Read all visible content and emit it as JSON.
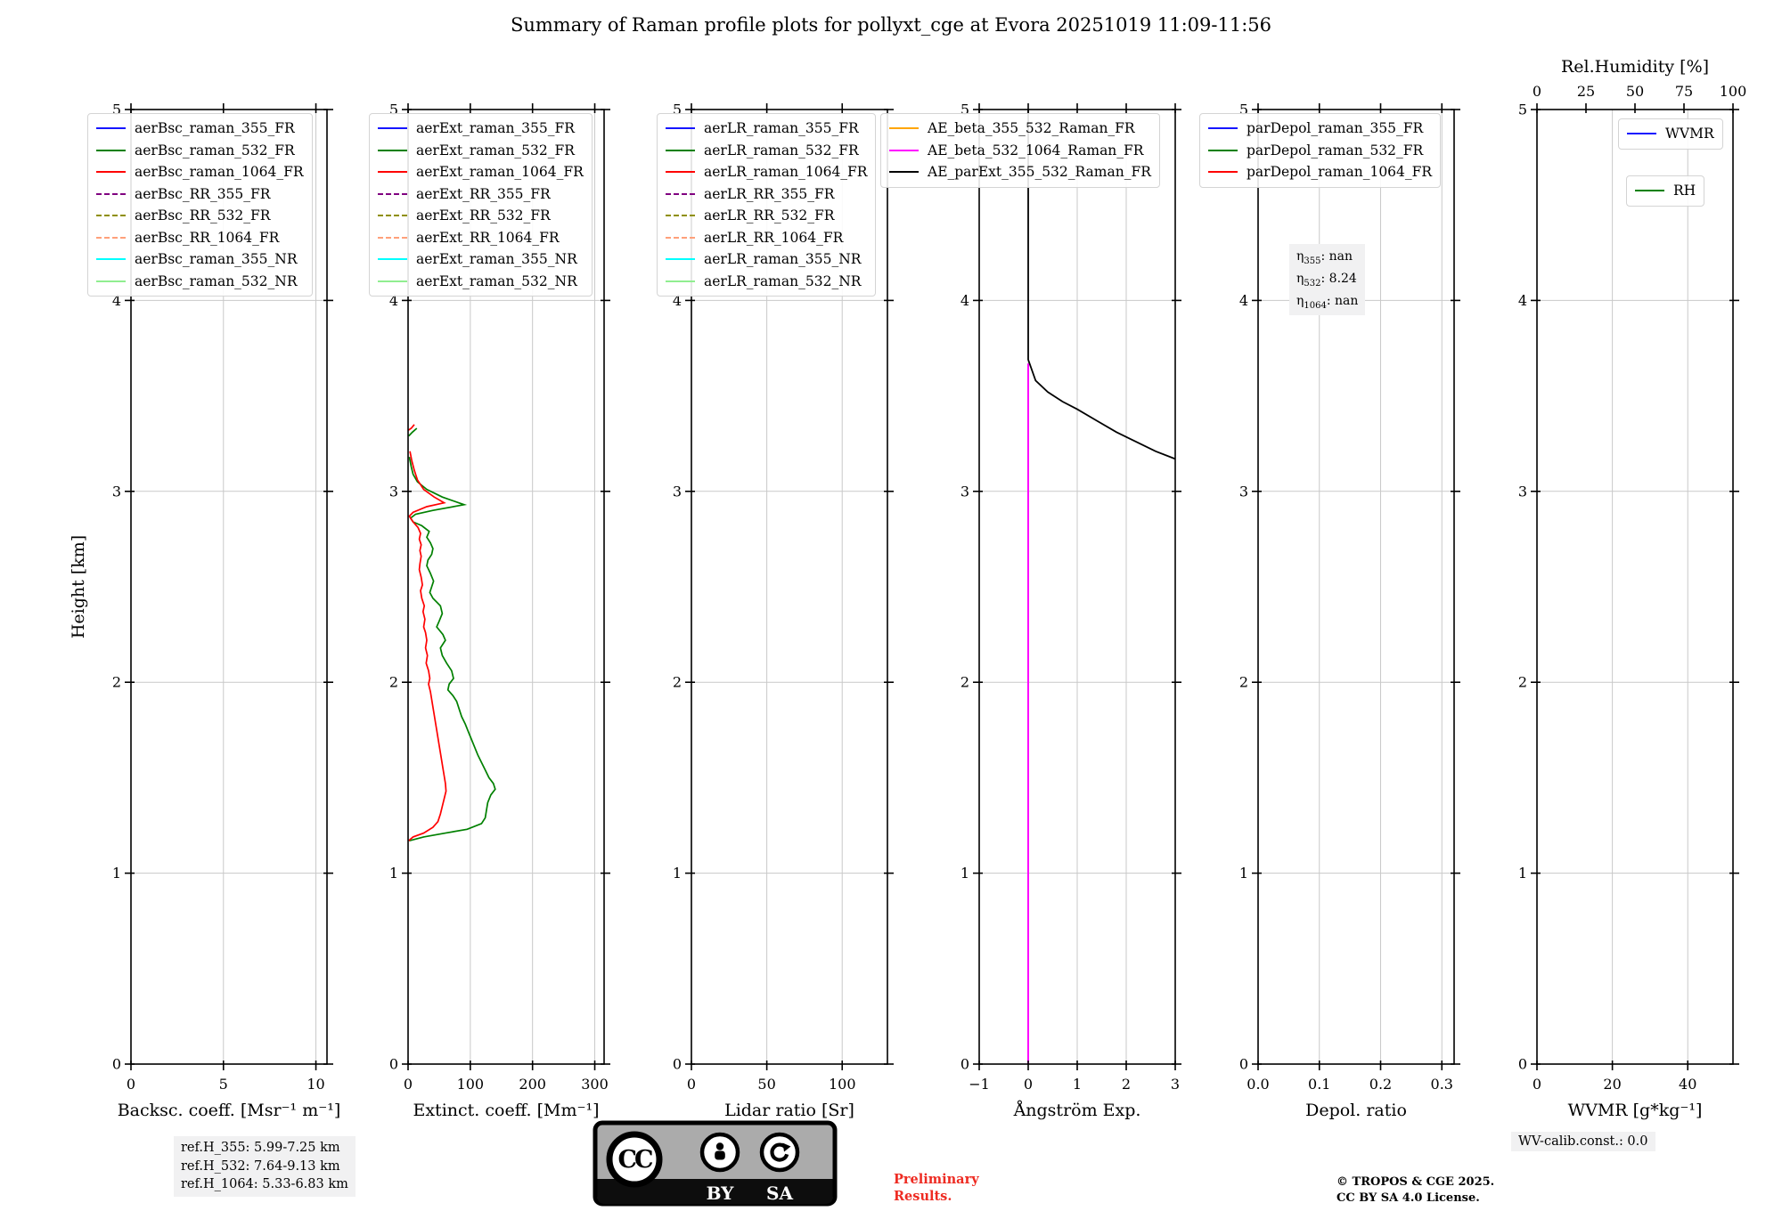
{
  "title": "Summary of Raman profile plots for pollyxt_cge at Evora 20251019 11:09-11:56",
  "ylabel": "Height [km]",
  "eta": {
    "symbol": "η",
    "sep": ": ",
    "lines": [
      {
        "sub": "355",
        "value": "nan"
      },
      {
        "sub": "532",
        "value": "8.24"
      },
      {
        "sub": "1064",
        "value": "nan"
      }
    ]
  },
  "footer": {
    "ref_heights": [
      "ref.H_355: 5.99-7.25 km",
      "ref.H_532: 7.64-9.13 km",
      "ref.H_1064: 5.33-6.83 km"
    ],
    "wv_calib": "WV-calib.const.: 0.0",
    "copyright": [
      "© TROPOS & CGE 2025.",
      "CC BY SA 4.0 License."
    ],
    "preliminary": [
      "Preliminary",
      "Results."
    ],
    "cc_badge": {
      "cc": "CC",
      "by": "BY",
      "sa": "SA"
    }
  },
  "colors": {
    "blue": "#1515ff",
    "green": "#008000",
    "red": "#ff0000",
    "purple": "#800080",
    "olive": "#8f8f00",
    "salmon": "#ffa07a",
    "cyan": "#00ffff",
    "lightgreen": "#90ee90",
    "orange": "#ffa500",
    "magenta": "#ff00ff",
    "black": "#000000",
    "grid": "#c9c9c9"
  },
  "legends": [
    {
      "id": "bsc",
      "items": [
        {
          "label": "aerBsc_raman_355_FR",
          "color": "#1515ff",
          "dash": false
        },
        {
          "label": "aerBsc_raman_532_FR",
          "color": "#008000",
          "dash": false
        },
        {
          "label": "aerBsc_raman_1064_FR",
          "color": "#ff0000",
          "dash": false
        },
        {
          "label": "aerBsc_RR_355_FR",
          "color": "#800080",
          "dash": true
        },
        {
          "label": "aerBsc_RR_532_FR",
          "color": "#8f8f00",
          "dash": true
        },
        {
          "label": "aerBsc_RR_1064_FR",
          "color": "#ffa07a",
          "dash": true
        },
        {
          "label": "aerBsc_raman_355_NR",
          "color": "#00ffff",
          "dash": false
        },
        {
          "label": "aerBsc_raman_532_NR",
          "color": "#90ee90",
          "dash": false
        }
      ]
    },
    {
      "id": "ext",
      "items": [
        {
          "label": "aerExt_raman_355_FR",
          "color": "#1515ff",
          "dash": false
        },
        {
          "label": "aerExt_raman_532_FR",
          "color": "#008000",
          "dash": false
        },
        {
          "label": "aerExt_raman_1064_FR",
          "color": "#ff0000",
          "dash": false
        },
        {
          "label": "aerExt_RR_355_FR",
          "color": "#800080",
          "dash": true
        },
        {
          "label": "aerExt_RR_532_FR",
          "color": "#8f8f00",
          "dash": true
        },
        {
          "label": "aerExt_RR_1064_FR",
          "color": "#ffa07a",
          "dash": true
        },
        {
          "label": "aerExt_raman_355_NR",
          "color": "#00ffff",
          "dash": false
        },
        {
          "label": "aerExt_raman_532_NR",
          "color": "#90ee90",
          "dash": false
        }
      ]
    },
    {
      "id": "lr",
      "items": [
        {
          "label": "aerLR_raman_355_FR",
          "color": "#1515ff",
          "dash": false
        },
        {
          "label": "aerLR_raman_532_FR",
          "color": "#008000",
          "dash": false
        },
        {
          "label": "aerLR_raman_1064_FR",
          "color": "#ff0000",
          "dash": false
        },
        {
          "label": "aerLR_RR_355_FR",
          "color": "#800080",
          "dash": true
        },
        {
          "label": "aerLR_RR_532_FR",
          "color": "#8f8f00",
          "dash": true
        },
        {
          "label": "aerLR_RR_1064_FR",
          "color": "#ffa07a",
          "dash": true
        },
        {
          "label": "aerLR_raman_355_NR",
          "color": "#00ffff",
          "dash": false
        },
        {
          "label": "aerLR_raman_532_NR",
          "color": "#90ee90",
          "dash": false
        }
      ]
    },
    {
      "id": "ae",
      "items": [
        {
          "label": "AE_beta_355_532_Raman_FR",
          "color": "#ffa500",
          "dash": false
        },
        {
          "label": "AE_beta_532_1064_Raman_FR",
          "color": "#ff00ff",
          "dash": false
        },
        {
          "label": "AE_parExt_355_532_Raman_FR",
          "color": "#000000",
          "dash": false
        }
      ]
    },
    {
      "id": "depol",
      "items": [
        {
          "label": "parDepol_raman_355_FR",
          "color": "#1515ff",
          "dash": false
        },
        {
          "label": "parDepol_raman_532_FR",
          "color": "#008000",
          "dash": false
        },
        {
          "label": "parDepol_raman_1064_FR",
          "color": "#ff0000",
          "dash": false
        }
      ]
    },
    {
      "id": "wvmr",
      "items": [
        {
          "label": "WVMR",
          "color": "#1515ff",
          "dash": false
        }
      ]
    },
    {
      "id": "rh",
      "items": [
        {
          "label": "RH",
          "color": "#008000",
          "dash": false
        }
      ]
    }
  ],
  "chart_data": [
    {
      "type": "line",
      "id": "backscatter",
      "xlabel": "Backsc. coeff. [Msr⁻¹ m⁻¹]",
      "xlim": [
        0,
        10.6
      ],
      "xticks": [
        0,
        5,
        10
      ],
      "xtick_labels": [
        "0",
        "5",
        "10"
      ],
      "ylim": [
        0,
        5
      ],
      "yticks": [
        0,
        1,
        2,
        3,
        4,
        5
      ],
      "ytick_labels": [
        "0",
        "1",
        "2",
        "3",
        "4",
        "5"
      ],
      "grid": true,
      "series": []
    },
    {
      "type": "line",
      "id": "extinction",
      "xlabel": "Extinct. coeff. [Mm⁻¹]",
      "xlim": [
        0,
        315
      ],
      "xticks": [
        0,
        100,
        200,
        300
      ],
      "xtick_labels": [
        "0",
        "100",
        "200",
        "300"
      ],
      "ylim": [
        0,
        5
      ],
      "yticks": [
        0,
        1,
        2,
        3,
        4,
        5
      ],
      "ytick_labels": [
        "0",
        "1",
        "2",
        "3",
        "4",
        "5"
      ],
      "grid": true,
      "series": [
        {
          "name": "aerExt_raman_532_FR",
          "color": "#008000",
          "lw": 1.7,
          "segments": [
            [
              [
                2,
                3.18
              ],
              [
                5,
                3.13
              ],
              [
                8,
                3.09
              ],
              [
                15,
                3.05
              ],
              [
                30,
                3.01
              ],
              [
                55,
                2.97
              ],
              [
                90,
                2.93
              ],
              [
                40,
                2.9
              ],
              [
                12,
                2.88
              ],
              [
                4,
                2.86
              ],
              [
                8,
                2.84
              ],
              [
                22,
                2.82
              ],
              [
                34,
                2.79
              ],
              [
                30,
                2.76
              ],
              [
                36,
                2.73
              ],
              [
                40,
                2.7
              ],
              [
                38,
                2.67
              ],
              [
                32,
                2.64
              ],
              [
                30,
                2.61
              ],
              [
                36,
                2.57
              ],
              [
                41,
                2.53
              ],
              [
                38,
                2.5
              ],
              [
                35,
                2.47
              ],
              [
                40,
                2.44
              ],
              [
                52,
                2.4
              ],
              [
                55,
                2.36
              ],
              [
                50,
                2.32
              ],
              [
                46,
                2.29
              ],
              [
                56,
                2.25
              ],
              [
                60,
                2.22
              ],
              [
                52,
                2.18
              ],
              [
                55,
                2.14
              ],
              [
                62,
                2.1
              ],
              [
                70,
                2.06
              ],
              [
                73,
                2.02
              ],
              [
                66,
                1.99
              ],
              [
                64,
                1.96
              ],
              [
                72,
                1.93
              ],
              [
                78,
                1.9
              ],
              [
                82,
                1.86
              ],
              [
                86,
                1.82
              ],
              [
                92,
                1.78
              ],
              [
                97,
                1.74
              ],
              [
                102,
                1.7
              ],
              [
                107,
                1.66
              ],
              [
                112,
                1.62
              ],
              [
                118,
                1.58
              ],
              [
                124,
                1.54
              ],
              [
                130,
                1.5
              ],
              [
                137,
                1.47
              ],
              [
                140,
                1.44
              ],
              [
                133,
                1.41
              ],
              [
                128,
                1.37
              ],
              [
                126,
                1.33
              ],
              [
                124,
                1.29
              ],
              [
                118,
                1.26
              ],
              [
                95,
                1.23
              ],
              [
                60,
                1.21
              ],
              [
                25,
                1.19
              ],
              [
                2,
                1.17
              ]
            ],
            [
              [
                1,
                3.29
              ],
              [
                7,
                3.31
              ],
              [
                14,
                3.33
              ]
            ]
          ]
        },
        {
          "name": "aerExt_raman_1064_FR",
          "color": "#ff0000",
          "lw": 1.7,
          "segments": [
            [
              [
                3,
                3.21
              ],
              [
                6,
                3.16
              ],
              [
                10,
                3.11
              ],
              [
                15,
                3.06
              ],
              [
                25,
                3.01
              ],
              [
                42,
                2.97
              ],
              [
                58,
                2.94
              ],
              [
                30,
                2.92
              ],
              [
                8,
                2.89
              ],
              [
                2,
                2.87
              ],
              [
                8,
                2.84
              ],
              [
                16,
                2.81
              ],
              [
                20,
                2.78
              ],
              [
                18,
                2.75
              ],
              [
                21,
                2.72
              ],
              [
                19,
                2.69
              ],
              [
                21,
                2.66
              ],
              [
                19,
                2.62
              ],
              [
                18,
                2.59
              ],
              [
                21,
                2.55
              ],
              [
                23,
                2.51
              ],
              [
                20,
                2.48
              ],
              [
                22,
                2.44
              ],
              [
                26,
                2.4
              ],
              [
                24,
                2.37
              ],
              [
                27,
                2.33
              ],
              [
                25,
                2.29
              ],
              [
                28,
                2.26
              ],
              [
                30,
                2.22
              ],
              [
                28,
                2.18
              ],
              [
                31,
                2.14
              ],
              [
                29,
                2.1
              ],
              [
                33,
                2.06
              ],
              [
                35,
                2.02
              ],
              [
                33,
                1.99
              ],
              [
                36,
                1.95
              ],
              [
                38,
                1.91
              ],
              [
                40,
                1.87
              ],
              [
                42,
                1.83
              ],
              [
                44,
                1.79
              ],
              [
                46,
                1.75
              ],
              [
                48,
                1.71
              ],
              [
                50,
                1.67
              ],
              [
                52,
                1.63
              ],
              [
                54,
                1.59
              ],
              [
                56,
                1.55
              ],
              [
                58,
                1.51
              ],
              [
                60,
                1.47
              ],
              [
                61,
                1.43
              ],
              [
                58,
                1.39
              ],
              [
                55,
                1.35
              ],
              [
                52,
                1.31
              ],
              [
                48,
                1.27
              ],
              [
                40,
                1.24
              ],
              [
                25,
                1.21
              ],
              [
                8,
                1.19
              ],
              [
                1,
                1.17
              ]
            ],
            [
              [
                0.5,
                3.32
              ],
              [
                5,
                3.33
              ],
              [
                10,
                3.35
              ]
            ]
          ]
        }
      ]
    },
    {
      "type": "line",
      "id": "lidar_ratio",
      "xlabel": "Lidar ratio [Sr]",
      "xlim": [
        0,
        130
      ],
      "xticks": [
        0,
        50,
        100
      ],
      "xtick_labels": [
        "0",
        "50",
        "100"
      ],
      "ylim": [
        0,
        5
      ],
      "yticks": [
        0,
        1,
        2,
        3,
        4,
        5
      ],
      "ytick_labels": [
        "0",
        "1",
        "2",
        "3",
        "4",
        "5"
      ],
      "grid": true,
      "series": []
    },
    {
      "type": "line",
      "id": "angstrom",
      "xlabel": "Ångström Exp.",
      "xlim": [
        -1,
        3
      ],
      "xticks": [
        -1,
        0,
        1,
        2,
        3
      ],
      "xtick_labels": [
        "−1",
        "0",
        "1",
        "2",
        "3"
      ],
      "ylim": [
        0,
        5
      ],
      "yticks": [
        0,
        1,
        2,
        3,
        4,
        5
      ],
      "ytick_labels": [
        "0",
        "1",
        "2",
        "3",
        "4",
        "5"
      ],
      "grid": true,
      "series": [
        {
          "name": "AE_beta_532_1064_Raman_FR",
          "color": "#ff00ff",
          "lw": 2.0,
          "segments": [
            [
              [
                0,
                0
              ],
              [
                0,
                3.67
              ]
            ]
          ]
        },
        {
          "name": "AE_parExt_355_532_Raman_FR",
          "color": "#000000",
          "lw": 1.8,
          "segments": [
            [
              [
                0,
                5.0
              ],
              [
                0,
                3.69
              ],
              [
                0.15,
                3.58
              ],
              [
                0.4,
                3.52
              ],
              [
                0.7,
                3.47
              ],
              [
                1.0,
                3.43
              ],
              [
                1.4,
                3.37
              ],
              [
                1.8,
                3.31
              ],
              [
                2.2,
                3.26
              ],
              [
                2.6,
                3.21
              ],
              [
                3.0,
                3.17
              ]
            ]
          ]
        }
      ]
    },
    {
      "type": "line",
      "id": "depol_ratio",
      "xlabel": "Depol. ratio",
      "xlim": [
        0,
        0.32
      ],
      "xticks": [
        0,
        0.1,
        0.2,
        0.3
      ],
      "xtick_labels": [
        "0.0",
        "0.1",
        "0.2",
        "0.3"
      ],
      "ylim": [
        0,
        5
      ],
      "yticks": [
        0,
        1,
        2,
        3,
        4,
        5
      ],
      "ytick_labels": [
        "0",
        "1",
        "2",
        "3",
        "4",
        "5"
      ],
      "grid": true,
      "series": []
    },
    {
      "type": "line",
      "id": "wvmr",
      "xlabel": "WVMR [g*kg⁻¹]",
      "xlim": [
        0,
        52
      ],
      "xticks": [
        0,
        20,
        40
      ],
      "xtick_labels": [
        "0",
        "20",
        "40"
      ],
      "ylim": [
        0,
        5
      ],
      "yticks": [
        0,
        1,
        2,
        3,
        4,
        5
      ],
      "ytick_labels": [
        "0",
        "1",
        "2",
        "3",
        "4",
        "5"
      ],
      "top_axis": {
        "label": "Rel.Humidity [%]",
        "lim": [
          0,
          100
        ],
        "ticks": [
          0,
          25,
          50,
          75,
          100
        ],
        "tick_labels": [
          "0",
          "25",
          "50",
          "75",
          "100"
        ]
      },
      "grid": true,
      "series": []
    }
  ]
}
